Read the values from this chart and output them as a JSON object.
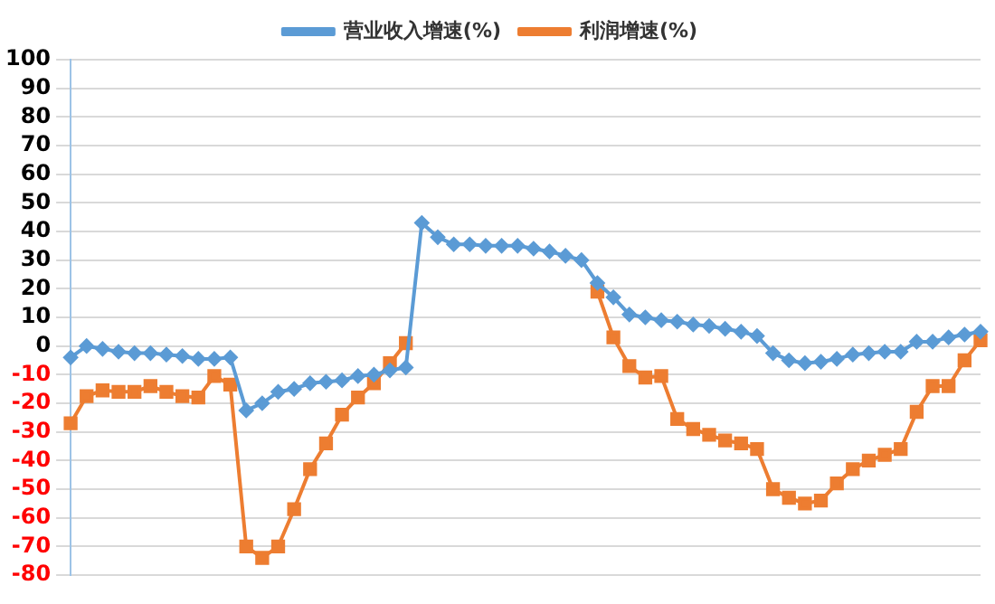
{
  "chart_data": {
    "type": "line",
    "categories": [
      null,
      null,
      null,
      null,
      null,
      null,
      null,
      null,
      null,
      null,
      null,
      null,
      null,
      null,
      null,
      null,
      null,
      null,
      null,
      null,
      null,
      null,
      null,
      null,
      null,
      null,
      null,
      null,
      null,
      null,
      null,
      null,
      null,
      null,
      null,
      null,
      null,
      null,
      null,
      null,
      null,
      null,
      null,
      null,
      null,
      null,
      null,
      null,
      null,
      null,
      null,
      null,
      null,
      null,
      null,
      null,
      null,
      null
    ],
    "series": [
      {
        "name": "营业收入增速(%)",
        "color": "#5b9bd5",
        "marker": "diamond",
        "values": [
          -4,
          0,
          -1,
          -2,
          -2.5,
          -2.5,
          -3,
          -3.5,
          -4.5,
          -4.5,
          -4,
          -22.5,
          -20,
          -16,
          -15,
          -13,
          -12.5,
          -12,
          -10.5,
          -10,
          -8.5,
          -7.5,
          43,
          38,
          35.5,
          35.5,
          35,
          35,
          35,
          34,
          33,
          31.5,
          30,
          22,
          17,
          11,
          10,
          9,
          8.5,
          7.5,
          7,
          6,
          5,
          3.5,
          -2.5,
          -5,
          -6,
          -5.5,
          -4.5,
          -3,
          -2.5,
          -2,
          -2,
          1.5,
          1.5,
          3,
          4,
          5
        ]
      },
      {
        "name": "利润增速(%)",
        "color": "#ed7d31",
        "marker": "square",
        "values": [
          -27,
          -17.5,
          -15.5,
          -16,
          -16,
          -14,
          -16,
          -17.5,
          -18,
          -10.5,
          -13.5,
          -70,
          -74,
          -70,
          -57,
          -43,
          -34,
          -24,
          -18,
          -13,
          -6,
          1,
          null,
          null,
          null,
          null,
          null,
          null,
          null,
          null,
          null,
          null,
          null,
          19,
          3,
          -7,
          -11,
          -10.5,
          -25.5,
          -29,
          -31,
          -33,
          -34,
          -36,
          -50,
          -53,
          -55,
          -54,
          -48,
          -43,
          -40,
          -38,
          -36,
          -23,
          -14,
          -14,
          -5,
          2
        ]
      }
    ],
    "ylim": [
      -80,
      100
    ],
    "yticks": [
      -80,
      -70,
      -60,
      -50,
      -40,
      -30,
      -20,
      -10,
      0,
      10,
      20,
      30,
      40,
      50,
      60,
      70,
      80,
      90,
      100
    ],
    "grid": "y",
    "legend": "top",
    "tick_labels": "y"
  }
}
